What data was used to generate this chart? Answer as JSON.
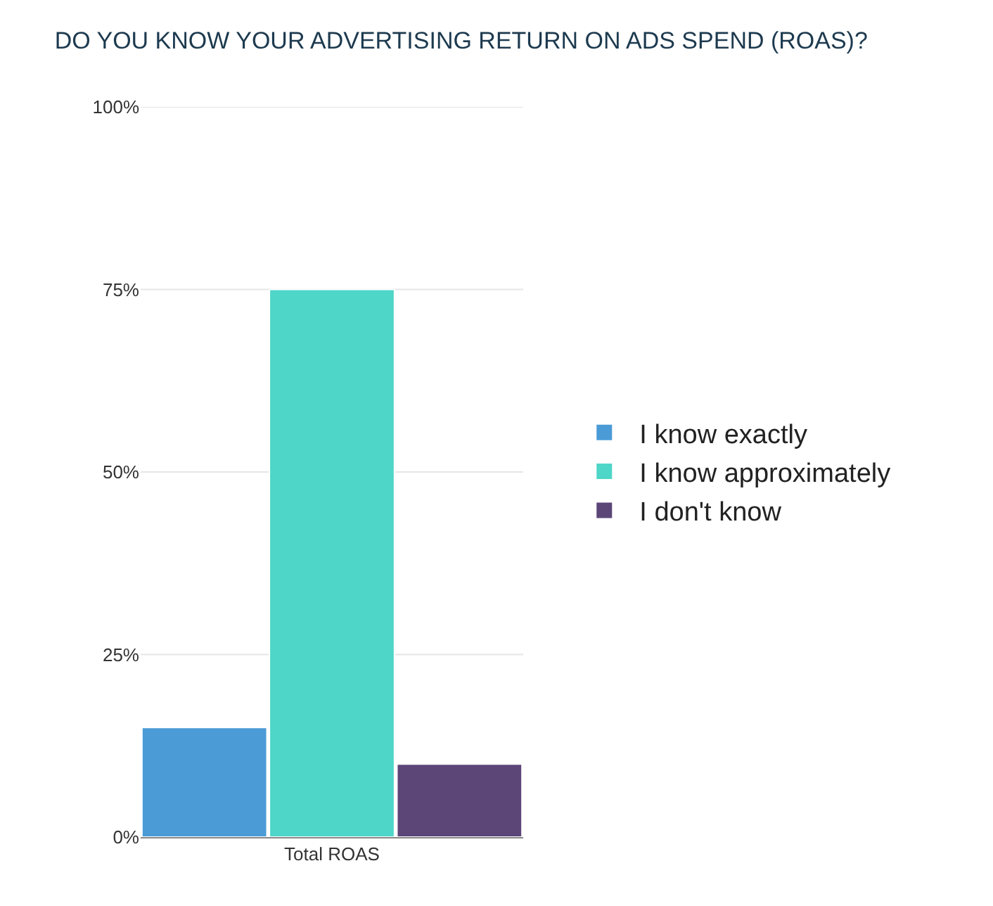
{
  "chart_data": {
    "type": "bar",
    "title": "DO YOU KNOW YOUR ADVERTISING RETURN ON ADS SPEND (ROAS)?",
    "categories": [
      null,
      "Total ROAS",
      null
    ],
    "series": [
      {
        "name": "I know exactly",
        "color": "#4a9bd6",
        "values": [
          15,
          null,
          null
        ]
      },
      {
        "name": "I know approximately",
        "color": "#4ed6c8",
        "values": [
          null,
          75,
          null
        ]
      },
      {
        "name": "I don't know",
        "color": "#5c4678",
        "values": [
          null,
          null,
          10
        ]
      }
    ],
    "ylim": [
      0,
      100
    ],
    "yticks": [
      {
        "value": 0,
        "label": "0%"
      },
      {
        "value": 25,
        "label": "25%"
      },
      {
        "value": 50,
        "label": "50%"
      },
      {
        "value": 75,
        "label": "75%"
      },
      {
        "value": 100,
        "label": "100%"
      }
    ],
    "grid": "y",
    "legend": "right"
  }
}
